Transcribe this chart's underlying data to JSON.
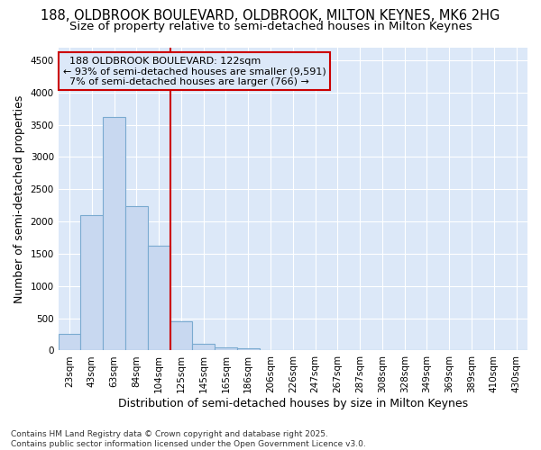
{
  "title_line1": "188, OLDBROOK BOULEVARD, OLDBROOK, MILTON KEYNES, MK6 2HG",
  "title_line2": "Size of property relative to semi-detached houses in Milton Keynes",
  "xlabel": "Distribution of semi-detached houses by size in Milton Keynes",
  "ylabel": "Number of semi-detached properties",
  "footnote": "Contains HM Land Registry data © Crown copyright and database right 2025.\nContains public sector information licensed under the Open Government Licence v3.0.",
  "bin_labels": [
    "23sqm",
    "43sqm",
    "63sqm",
    "84sqm",
    "104sqm",
    "125sqm",
    "145sqm",
    "165sqm",
    "186sqm",
    "206sqm",
    "226sqm",
    "247sqm",
    "267sqm",
    "287sqm",
    "308sqm",
    "328sqm",
    "349sqm",
    "369sqm",
    "389sqm",
    "410sqm",
    "430sqm"
  ],
  "bar_values": [
    260,
    2100,
    3620,
    2240,
    1630,
    450,
    105,
    55,
    30,
    0,
    0,
    0,
    0,
    0,
    0,
    0,
    0,
    0,
    0,
    0,
    0
  ],
  "bar_color": "#c8d8f0",
  "bar_edge_color": "#7aaad0",
  "pct_smaller": 93,
  "count_smaller": 9591,
  "pct_larger": 7,
  "count_larger": 766,
  "property_label": "188 OLDBROOK BOULEVARD: 122sqm",
  "vline_color": "#cc0000",
  "vline_x_index": 5,
  "annotation_box_color": "#cc0000",
  "ylim": [
    0,
    4700
  ],
  "yticks": [
    0,
    500,
    1000,
    1500,
    2000,
    2500,
    3000,
    3500,
    4000,
    4500
  ],
  "plot_bg_color": "#dce8f8",
  "fig_bg_color": "#ffffff",
  "grid_color": "#ffffff",
  "title_fontsize": 10.5,
  "subtitle_fontsize": 9.5,
  "axis_label_fontsize": 9,
  "tick_fontsize": 7.5,
  "annot_fontsize": 8,
  "footnote_fontsize": 6.5
}
